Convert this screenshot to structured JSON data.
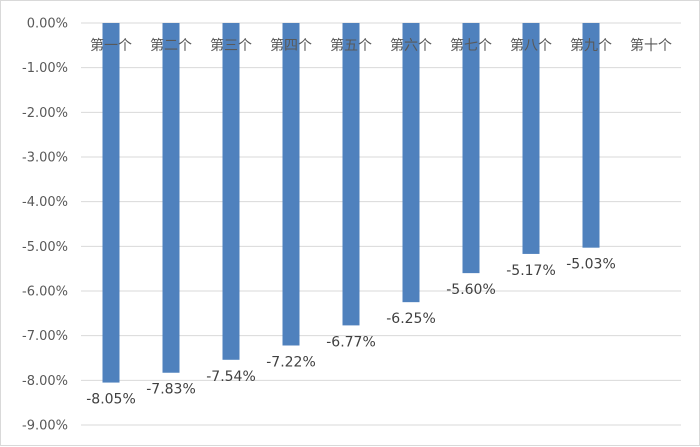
{
  "chart_data": {
    "type": "bar",
    "categories": [
      "第一个",
      "第二个",
      "第三个",
      "第四个",
      "第五个",
      "第六个",
      "第七个",
      "第八个",
      "第九个",
      "第十个"
    ],
    "series": [
      {
        "values": [
          -8.05,
          -7.83,
          -7.54,
          -7.22,
          -6.77,
          -6.25,
          -5.6,
          -5.17,
          -5.03,
          null
        ]
      }
    ],
    "data_labels": [
      "-8.05%",
      "-7.83%",
      "-7.54%",
      "-7.22%",
      "-6.77%",
      "-6.25%",
      "-5.60%",
      "-5.17%",
      "-5.03%",
      ""
    ],
    "y_ticks": [
      "0.00%",
      "-1.00%",
      "-2.00%",
      "-3.00%",
      "-4.00%",
      "-5.00%",
      "-6.00%",
      "-7.00%",
      "-8.00%",
      "-9.00%"
    ],
    "ylim": [
      -9,
      0
    ],
    "title": "",
    "xlabel": "",
    "ylabel": "",
    "grid": true,
    "legend": "none",
    "bar_color": "#4F81BD",
    "grid_color": "#d9d9d9",
    "axis_text_color": "#595959"
  }
}
